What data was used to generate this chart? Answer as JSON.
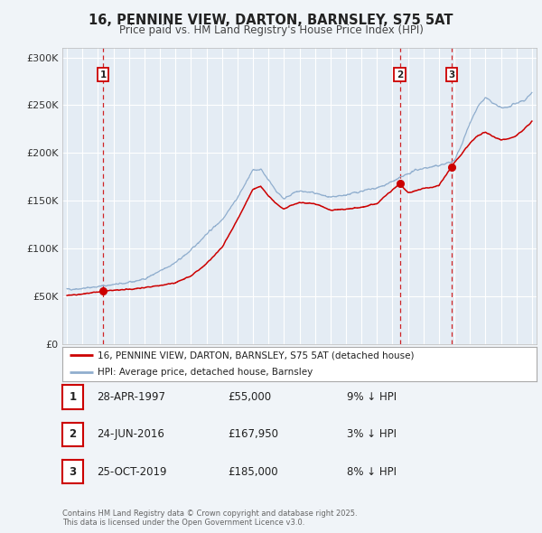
{
  "title": "16, PENNINE VIEW, DARTON, BARNSLEY, S75 5AT",
  "subtitle": "Price paid vs. HM Land Registry's House Price Index (HPI)",
  "bg_color": "#f0f4f8",
  "plot_bg_color": "#e4ecf4",
  "grid_color": "#ffffff",
  "red_line_color": "#cc0000",
  "blue_line_color": "#90aece",
  "ylim": [
    0,
    310000
  ],
  "yticks": [
    0,
    50000,
    100000,
    150000,
    200000,
    250000,
    300000
  ],
  "ytick_labels": [
    "£0",
    "£50K",
    "£100K",
    "£150K",
    "£200K",
    "£250K",
    "£300K"
  ],
  "x_start_year": 1995,
  "x_end_year": 2025,
  "transactions": [
    {
      "num": 1,
      "date": "28-APR-1997",
      "price": 55000,
      "year": 1997.33,
      "hpi_diff": "9% ↓ HPI"
    },
    {
      "num": 2,
      "date": "24-JUN-2016",
      "price": 167950,
      "year": 2016.47,
      "hpi_diff": "3% ↓ HPI"
    },
    {
      "num": 3,
      "date": "25-OCT-2019",
      "price": 185000,
      "year": 2019.81,
      "hpi_diff": "8% ↓ HPI"
    }
  ],
  "legend_red_label": "16, PENNINE VIEW, DARTON, BARNSLEY, S75 5AT (detached house)",
  "legend_blue_label": "HPI: Average price, detached house, Barnsley",
  "footer": "Contains HM Land Registry data © Crown copyright and database right 2025.\nThis data is licensed under the Open Government Licence v3.0.",
  "hpi_anchors_x": [
    1995,
    1996,
    1997,
    1998,
    1999,
    2000,
    2001,
    2002,
    2003,
    2004,
    2005,
    2006,
    2007,
    2007.5,
    2008,
    2008.5,
    2009,
    2009.5,
    2010,
    2011,
    2012,
    2013,
    2014,
    2015,
    2016,
    2017,
    2017.5,
    2018,
    2018.5,
    2019,
    2019.5,
    2020,
    2020.5,
    2021,
    2021.5,
    2022,
    2022.5,
    2023,
    2023.5,
    2024,
    2024.5,
    2025
  ],
  "hpi_anchors_y": [
    57000,
    58000,
    60000,
    62000,
    64000,
    68000,
    76000,
    85000,
    98000,
    115000,
    130000,
    153000,
    182000,
    183000,
    172000,
    160000,
    152000,
    157000,
    160000,
    158000,
    153000,
    156000,
    160000,
    163000,
    170000,
    178000,
    182000,
    184000,
    185000,
    187000,
    189000,
    192000,
    210000,
    232000,
    248000,
    258000,
    252000,
    247000,
    248000,
    252000,
    255000,
    263000
  ],
  "price_anchors_x": [
    1995,
    1996,
    1997.33,
    1998,
    1999,
    2000,
    2001,
    2002,
    2003,
    2004,
    2005,
    2006,
    2007,
    2007.5,
    2008,
    2008.5,
    2009,
    2009.5,
    2010,
    2011,
    2012,
    2013,
    2014,
    2015,
    2016.47,
    2017,
    2017.5,
    2018,
    2018.5,
    2019,
    2019.81,
    2020,
    2020.5,
    2021,
    2021.5,
    2022,
    2022.5,
    2023,
    2023.5,
    2024,
    2024.5,
    2025
  ],
  "price_anchors_y": [
    51000,
    52000,
    55000,
    56000,
    57000,
    59000,
    61000,
    64000,
    71000,
    84000,
    101000,
    130000,
    162000,
    165000,
    155000,
    147000,
    141000,
    145000,
    148000,
    147000,
    140000,
    141000,
    143000,
    147000,
    167950,
    158000,
    160000,
    163000,
    164000,
    166000,
    185000,
    190000,
    200000,
    210000,
    218000,
    222000,
    217000,
    214000,
    215000,
    218000,
    225000,
    233000
  ]
}
